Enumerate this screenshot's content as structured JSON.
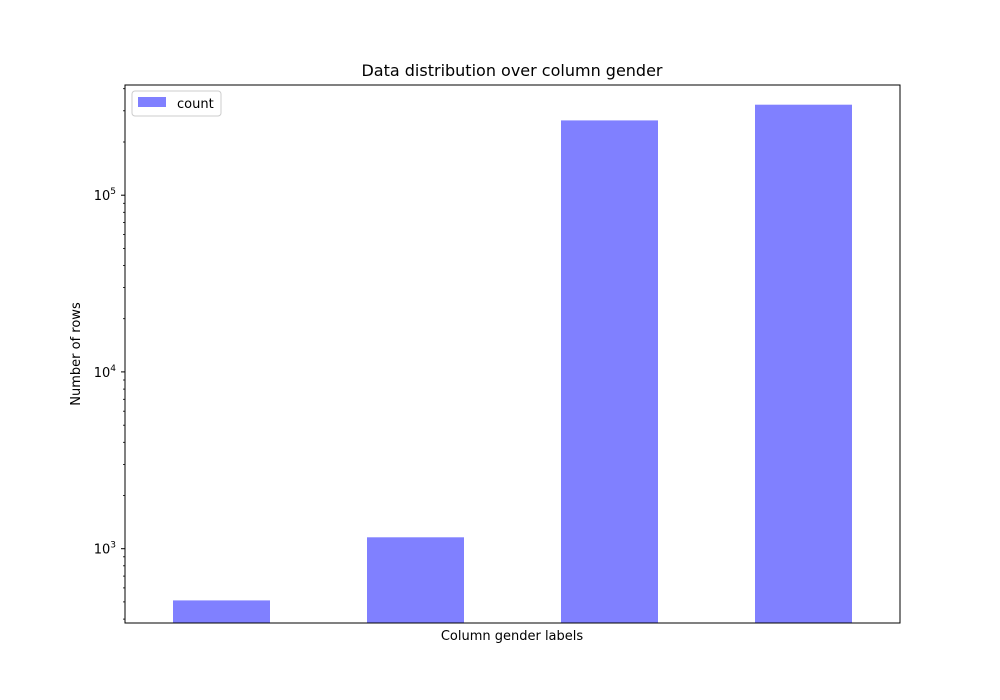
{
  "colors": {
    "bar": "#8080ff",
    "axes": "#000000",
    "background": "#ffffff",
    "legend_border": "#cccccc"
  },
  "chart_data": {
    "type": "bar",
    "title": "Data distribution over column gender",
    "xlabel": "Column gender labels",
    "ylabel": "Number of rows",
    "yscale": "log",
    "ylim": [
      380,
      420000
    ],
    "grid": false,
    "legend_position": "top-left",
    "categories": [
      "",
      "",
      "",
      ""
    ],
    "series": [
      {
        "name": "count",
        "values": [
          510,
          1160,
          265000,
          325000
        ]
      }
    ],
    "y_major_ticks": [
      {
        "value": 1000,
        "base": "10",
        "exp": "3"
      },
      {
        "value": 10000,
        "base": "10",
        "exp": "4"
      },
      {
        "value": 100000,
        "base": "10",
        "exp": "5"
      }
    ]
  }
}
